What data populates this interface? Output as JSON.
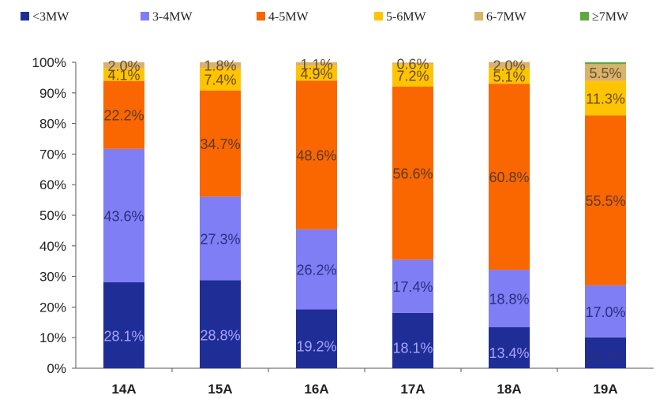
{
  "chart_data": {
    "type": "bar",
    "stacked": true,
    "percent_stacked": true,
    "categories": [
      "14A",
      "15A",
      "16A",
      "17A",
      "18A",
      "19A"
    ],
    "series": [
      {
        "name": "<3MW",
        "color": "#1f2e96",
        "values": [
          28.1,
          28.8,
          19.2,
          18.1,
          13.4,
          10.1
        ],
        "labels": [
          "28.1%",
          "28.8%",
          "19.2%",
          "18.1%",
          "13.4%",
          "10.1%"
        ]
      },
      {
        "name": "3-4MW",
        "color": "#7f7ef5",
        "values": [
          43.6,
          27.3,
          26.2,
          17.4,
          18.8,
          17.0
        ],
        "labels": [
          "43.6%",
          "27.3%",
          "26.2%",
          "17.4%",
          "18.8%",
          "17.0%"
        ]
      },
      {
        "name": "4-5MW",
        "color": "#fa6600",
        "values": [
          22.2,
          34.7,
          48.6,
          56.6,
          60.8,
          55.5
        ],
        "labels": [
          "22.2%",
          "34.7%",
          "48.6%",
          "56.6%",
          "60.8%",
          "55.5%"
        ]
      },
      {
        "name": "5-6MW",
        "color": "#ffc400",
        "values": [
          4.1,
          7.4,
          4.9,
          7.2,
          5.1,
          11.3
        ],
        "labels": [
          "4.1%",
          "7.4%",
          "4.9%",
          "7.2%",
          "5.1%",
          "11.3%"
        ]
      },
      {
        "name": "6-7MW",
        "color": "#d9b26c",
        "values": [
          2.0,
          1.8,
          1.1,
          0.6,
          2.0,
          5.5
        ],
        "labels": [
          "2.0%",
          "1.8%",
          "1.1%",
          "0.6%",
          "2.0%",
          "5.5%"
        ]
      },
      {
        "name": "≥7MW",
        "color": "#5fa83e",
        "values": [
          0,
          0,
          0,
          0,
          0,
          0.6
        ],
        "labels": [
          "",
          "",
          "",
          "",
          "",
          ""
        ]
      }
    ],
    "yticks": [
      "0%",
      "10%",
      "20%",
      "30%",
      "40%",
      "50%",
      "60%",
      "70%",
      "80%",
      "90%",
      "100%"
    ],
    "ylim": [
      0,
      100
    ],
    "legend_position": "top",
    "grid": false
  }
}
